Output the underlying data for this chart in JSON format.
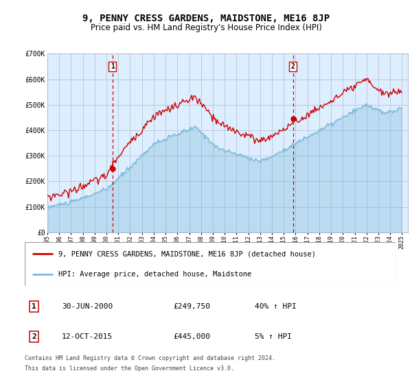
{
  "title": "9, PENNY CRESS GARDENS, MAIDSTONE, ME16 8JP",
  "subtitle": "Price paid vs. HM Land Registry's House Price Index (HPI)",
  "legend_line1": "9, PENNY CRESS GARDENS, MAIDSTONE, ME16 8JP (detached house)",
  "legend_line2": "HPI: Average price, detached house, Maidstone",
  "annotation1_date": "30-JUN-2000",
  "annotation1_price": "£249,750",
  "annotation1_hpi": "40% ↑ HPI",
  "annotation1_year": 2000.5,
  "annotation1_value": 249750,
  "annotation2_date": "12-OCT-2015",
  "annotation2_price": "£445,000",
  "annotation2_hpi": "5% ↑ HPI",
  "annotation2_year": 2015.79,
  "annotation2_value": 445000,
  "hpi_color": "#7ab8d9",
  "price_color": "#cc0000",
  "bg_color": "#ddeeff",
  "grid_color": "#b0b8cc",
  "footnote1": "Contains HM Land Registry data © Crown copyright and database right 2024.",
  "footnote2": "This data is licensed under the Open Government Licence v3.0.",
  "ylim": [
    0,
    700000
  ],
  "yticks": [
    0,
    100000,
    200000,
    300000,
    400000,
    500000,
    600000,
    700000
  ],
  "ytick_labels": [
    "£0",
    "£100K",
    "£200K",
    "£300K",
    "£400K",
    "£500K",
    "£600K",
    "£700K"
  ],
  "xlim_start": 1995,
  "xlim_end": 2025.5
}
